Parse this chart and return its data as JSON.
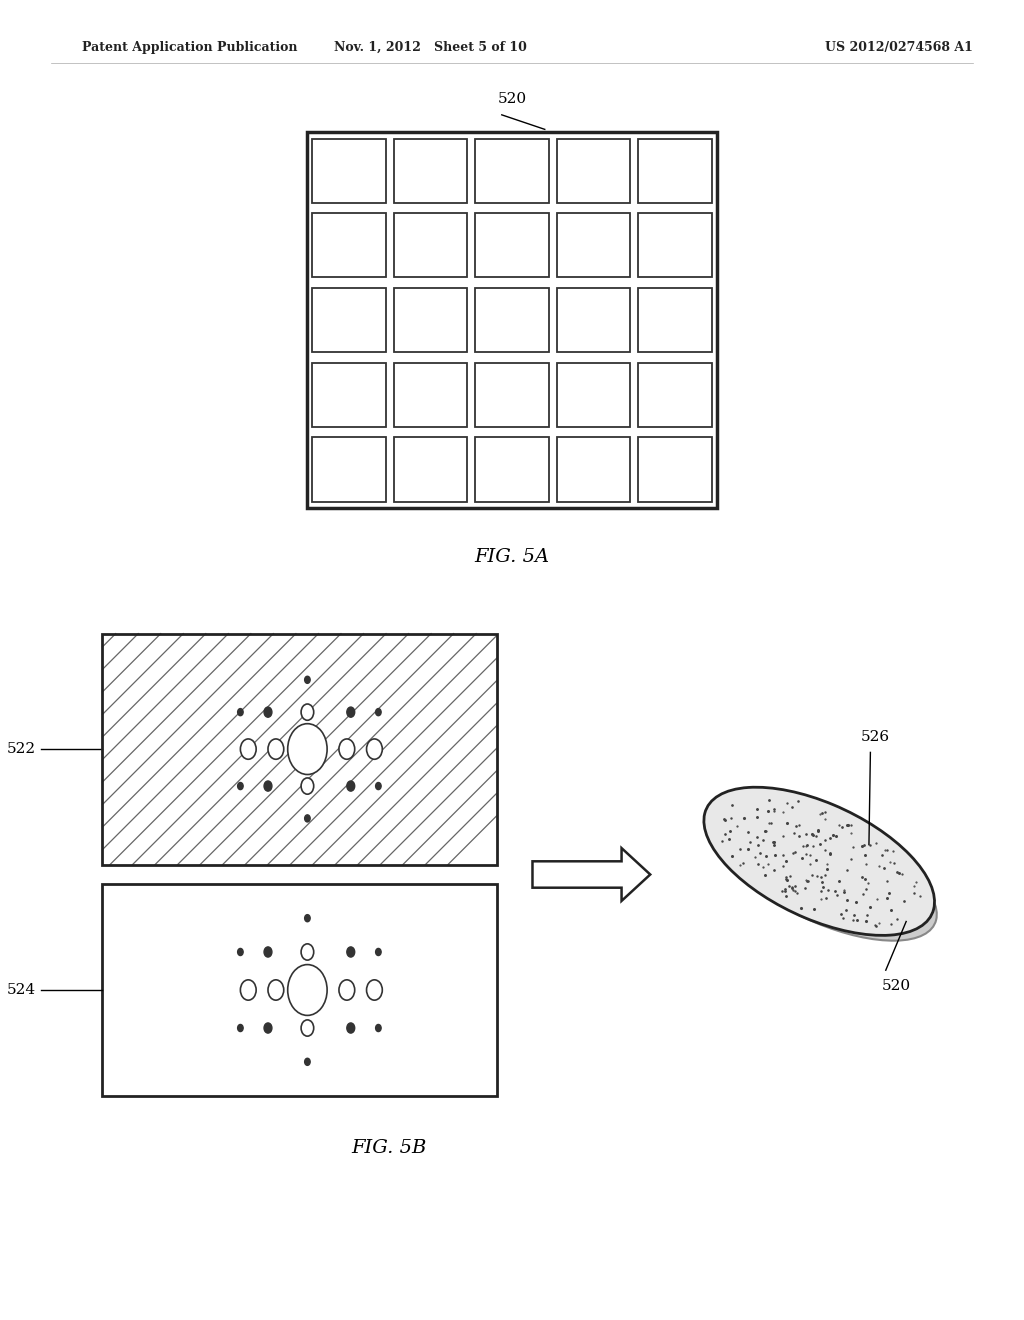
{
  "bg_color": "#ffffff",
  "header_left": "Patent Application Publication",
  "header_mid": "Nov. 1, 2012   Sheet 5 of 10",
  "header_right": "US 2012/0274568 A1",
  "fig5a_label": "FIG. 5A",
  "fig5b_label": "FIG. 5B",
  "label_520_top": "520",
  "label_522": "522",
  "label_524": "524",
  "label_526": "526",
  "label_520_bot": "520",
  "grid_rows": 5,
  "grid_cols": 5
}
